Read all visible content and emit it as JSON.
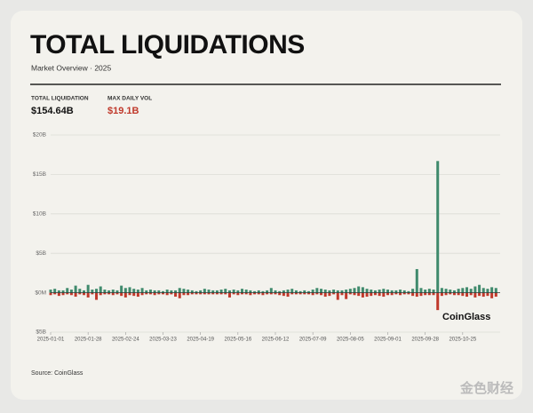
{
  "header": {
    "title": "TOTAL LIQUIDATIONS",
    "subtitle": "Market Overview · 2025"
  },
  "stats": [
    {
      "label": "TOTAL LIQUIDATION",
      "value": "$154.64B"
    },
    {
      "label": "MAX DAILY VOL",
      "value": "$19.1B"
    }
  ],
  "chart_data": {
    "type": "bar",
    "annotation": "CoinGlass",
    "x": [
      "2025-01-01",
      "2025-01-04",
      "2025-01-07",
      "2025-01-10",
      "2025-01-13",
      "2025-01-16",
      "2025-01-19",
      "2025-01-22",
      "2025-01-25",
      "2025-01-28",
      "2025-01-31",
      "2025-02-03",
      "2025-02-06",
      "2025-02-09",
      "2025-02-12",
      "2025-02-15",
      "2025-02-18",
      "2025-02-21",
      "2025-02-24",
      "2025-02-27",
      "2025-03-02",
      "2025-03-05",
      "2025-03-08",
      "2025-03-11",
      "2025-03-14",
      "2025-03-17",
      "2025-03-20",
      "2025-03-23",
      "2025-03-26",
      "2025-03-29",
      "2025-04-01",
      "2025-04-04",
      "2025-04-07",
      "2025-04-10",
      "2025-04-13",
      "2025-04-16",
      "2025-04-19",
      "2025-04-22",
      "2025-04-25",
      "2025-04-28",
      "2025-05-01",
      "2025-05-04",
      "2025-05-07",
      "2025-05-10",
      "2025-05-13",
      "2025-05-16",
      "2025-05-19",
      "2025-05-22",
      "2025-05-25",
      "2025-05-28",
      "2025-05-31",
      "2025-06-03",
      "2025-06-06",
      "2025-06-09",
      "2025-06-12",
      "2025-06-15",
      "2025-06-18",
      "2025-06-21",
      "2025-06-24",
      "2025-06-27",
      "2025-06-30",
      "2025-07-03",
      "2025-07-06",
      "2025-07-09",
      "2025-07-12",
      "2025-07-15",
      "2025-07-18",
      "2025-07-21",
      "2025-07-24",
      "2025-07-27",
      "2025-07-30",
      "2025-08-02",
      "2025-08-05",
      "2025-08-08",
      "2025-08-11",
      "2025-08-14",
      "2025-08-17",
      "2025-08-20",
      "2025-08-23",
      "2025-08-26",
      "2025-08-29",
      "2025-09-01",
      "2025-09-04",
      "2025-09-07",
      "2025-09-10",
      "2025-09-13",
      "2025-09-16",
      "2025-09-19",
      "2025-09-22",
      "2025-09-25",
      "2025-09-28",
      "2025-10-01",
      "2025-10-04",
      "2025-10-07",
      "2025-10-10",
      "2025-10-13",
      "2025-10-16",
      "2025-10-19",
      "2025-10-22",
      "2025-10-25",
      "2025-10-28",
      "2025-10-31",
      "2025-11-03",
      "2025-11-06",
      "2025-11-09",
      "2025-11-12",
      "2025-11-15",
      "2025-11-18"
    ],
    "series": [
      {
        "color": "#3f8a6c",
        "values": [
          0.4,
          0.5,
          0.3,
          0.3,
          0.6,
          0.4,
          0.9,
          0.5,
          0.3,
          1.0,
          0.4,
          0.5,
          0.8,
          0.4,
          0.3,
          0.4,
          0.3,
          0.9,
          0.6,
          0.7,
          0.5,
          0.4,
          0.6,
          0.3,
          0.4,
          0.3,
          0.3,
          0.2,
          0.4,
          0.3,
          0.3,
          0.6,
          0.5,
          0.4,
          0.3,
          0.2,
          0.3,
          0.5,
          0.4,
          0.3,
          0.3,
          0.4,
          0.5,
          0.3,
          0.4,
          0.3,
          0.5,
          0.4,
          0.3,
          0.2,
          0.3,
          0.2,
          0.3,
          0.6,
          0.3,
          0.2,
          0.3,
          0.4,
          0.5,
          0.3,
          0.2,
          0.3,
          0.2,
          0.4,
          0.6,
          0.5,
          0.4,
          0.3,
          0.4,
          0.3,
          0.3,
          0.4,
          0.5,
          0.6,
          0.8,
          0.7,
          0.5,
          0.4,
          0.3,
          0.4,
          0.5,
          0.4,
          0.3,
          0.3,
          0.4,
          0.3,
          0.2,
          0.5,
          3.0,
          0.6,
          0.4,
          0.5,
          0.4,
          16.7,
          0.6,
          0.5,
          0.4,
          0.3,
          0.5,
          0.6,
          0.7,
          0.5,
          0.8,
          1.0,
          0.6,
          0.5,
          0.7,
          0.6
        ]
      },
      {
        "color": "#c0392b",
        "values": [
          -0.3,
          -0.2,
          -0.4,
          -0.3,
          -0.2,
          -0.3,
          -0.5,
          -0.2,
          -0.3,
          -0.6,
          -0.2,
          -0.9,
          -0.3,
          -0.2,
          -0.2,
          -0.3,
          -0.2,
          -0.4,
          -0.6,
          -0.3,
          -0.4,
          -0.5,
          -0.3,
          -0.2,
          -0.2,
          -0.3,
          -0.2,
          -0.2,
          -0.3,
          -0.2,
          -0.5,
          -0.7,
          -0.3,
          -0.3,
          -0.2,
          -0.2,
          -0.2,
          -0.2,
          -0.2,
          -0.2,
          -0.2,
          -0.2,
          -0.2,
          -0.6,
          -0.2,
          -0.3,
          -0.2,
          -0.2,
          -0.3,
          -0.2,
          -0.2,
          -0.3,
          -0.2,
          -0.2,
          -0.2,
          -0.3,
          -0.4,
          -0.5,
          -0.2,
          -0.2,
          -0.2,
          -0.2,
          -0.2,
          -0.3,
          -0.2,
          -0.3,
          -0.5,
          -0.4,
          -0.2,
          -0.9,
          -0.3,
          -0.8,
          -0.2,
          -0.3,
          -0.4,
          -0.6,
          -0.5,
          -0.4,
          -0.3,
          -0.4,
          -0.5,
          -0.3,
          -0.3,
          -0.2,
          -0.3,
          -0.2,
          -0.2,
          -0.4,
          -0.5,
          -0.4,
          -0.3,
          -0.3,
          -0.3,
          -2.2,
          -0.4,
          -0.3,
          -0.2,
          -0.3,
          -0.3,
          -0.4,
          -0.5,
          -0.3,
          -0.6,
          -0.4,
          -0.5,
          -0.4,
          -0.7,
          -0.5
        ]
      }
    ],
    "xlim": [
      "2025-01-01",
      "2025-11-21"
    ],
    "xticks": [
      "2025-01-01",
      "2025-01-28",
      "2025-02-24",
      "2025-03-23",
      "2025-04-19",
      "2025-05-16",
      "2025-06-12",
      "2025-07-09",
      "2025-08-05",
      "2025-09-01",
      "2025-09-28",
      "2025-10-25"
    ],
    "ylim": [
      -5,
      20
    ],
    "yticks": [
      {
        "value": -5,
        "label": "$5B"
      },
      {
        "value": 0,
        "label": "$0M"
      },
      {
        "value": 5,
        "label": "$5B"
      },
      {
        "value": 10,
        "label": "$10B"
      },
      {
        "value": 15,
        "label": "$15B"
      },
      {
        "value": 20,
        "label": "$20B"
      }
    ],
    "grid": true
  },
  "footer": {
    "source": "Source: CoinGlass",
    "watermark": "金色财经"
  }
}
